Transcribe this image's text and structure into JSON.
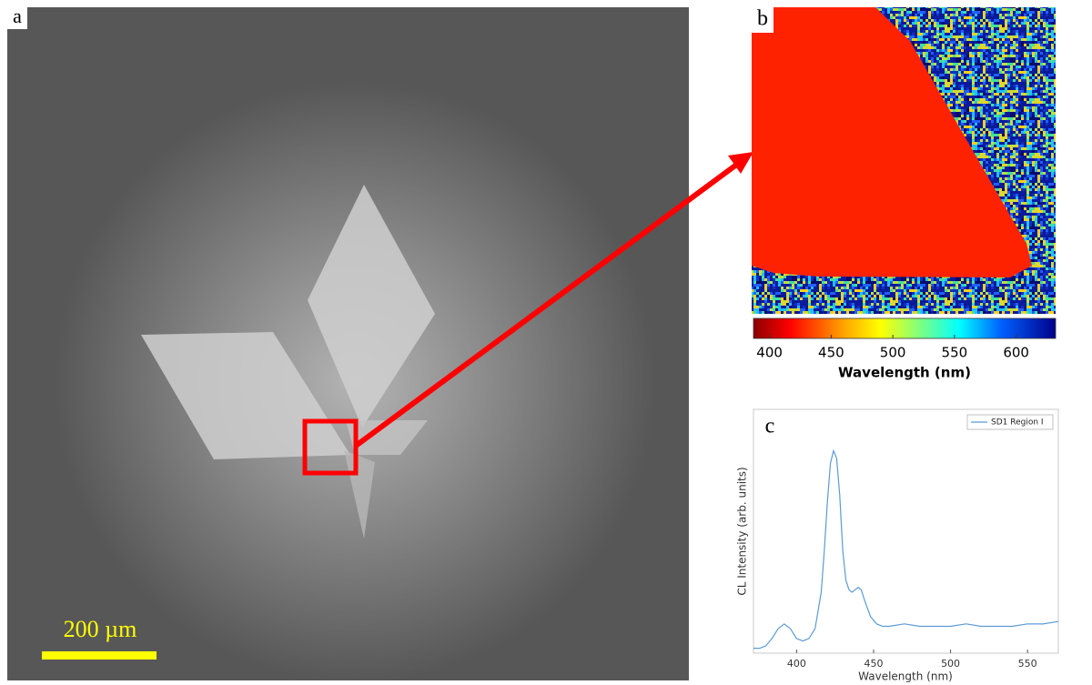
{
  "panels": {
    "a": {
      "label": "a",
      "scale_bar": "200 µm"
    },
    "b": {
      "label": "b",
      "colorbar": {
        "label": "Wavelength (nm)",
        "lim": [
          387,
          632
        ],
        "ticks": [
          400,
          450,
          500,
          550,
          600
        ]
      }
    },
    "c": {
      "label": "c"
    }
  },
  "chart_data": {
    "type": "line",
    "x_label": "Wavelength  (nm)",
    "y_label": "CL Intensity (arb. units)",
    "xlim": [
      372,
      570
    ],
    "ylim": [
      0,
      1
    ],
    "xticks": [
      400,
      450,
      500,
      550
    ],
    "legend": "upper right",
    "series": [
      {
        "name": "SD1 Region I",
        "color": "#5b9bd5",
        "x": [
          372,
          376,
          380,
          384,
          388,
          392,
          396,
          400,
          404,
          408,
          412,
          416,
          418,
          420,
          422,
          424,
          426,
          428,
          430,
          432,
          434,
          436,
          438,
          440,
          442,
          444,
          448,
          452,
          456,
          460,
          470,
          480,
          490,
          500,
          510,
          520,
          530,
          540,
          550,
          560,
          570
        ],
        "values": [
          0.02,
          0.02,
          0.03,
          0.06,
          0.1,
          0.12,
          0.1,
          0.06,
          0.05,
          0.06,
          0.1,
          0.25,
          0.42,
          0.62,
          0.78,
          0.83,
          0.8,
          0.65,
          0.42,
          0.3,
          0.26,
          0.25,
          0.26,
          0.27,
          0.26,
          0.22,
          0.15,
          0.12,
          0.11,
          0.11,
          0.12,
          0.11,
          0.11,
          0.11,
          0.12,
          0.11,
          0.11,
          0.11,
          0.12,
          0.12,
          0.13
        ]
      }
    ]
  }
}
